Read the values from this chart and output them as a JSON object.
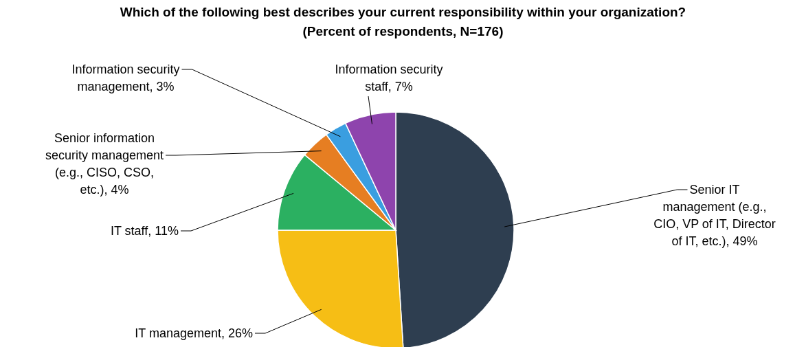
{
  "chart_data": {
    "type": "pie",
    "title": "Which of the following best describes your current responsibility within your organization?",
    "subtitle": "(Percent of respondents, N=176)",
    "categories": [
      "Senior IT management (e.g., CIO, VP of IT, Director of IT, etc.)",
      "IT management",
      "IT staff",
      "Senior information security management (e.g., CISO, CSO, etc.)",
      "Information security management",
      "Information security staff"
    ],
    "values": [
      49,
      26,
      11,
      4,
      3,
      7
    ],
    "colors": [
      "#2e3e50",
      "#f6be15",
      "#2bb061",
      "#e67e22",
      "#3a9ee0",
      "#8e44ad"
    ],
    "value_labels": [
      "49%",
      "26%",
      "11%",
      "4%",
      "3%",
      "7%"
    ]
  }
}
